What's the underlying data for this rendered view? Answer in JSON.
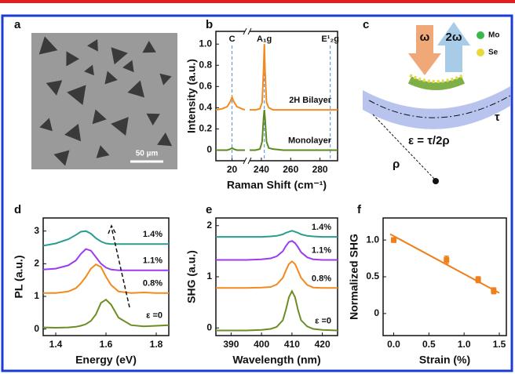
{
  "panel_labels": [
    "a",
    "b",
    "c",
    "d",
    "e",
    "f"
  ],
  "panel_a": {
    "scale_bar": "50 µm"
  },
  "panel_c": {
    "pump": "ω",
    "shg": "2ω",
    "legend": [
      "Mo",
      "Se"
    ],
    "equation": "ε = τ/2ρ",
    "rho": "ρ",
    "tau": "τ"
  },
  "chart_data": [
    {
      "type": "line",
      "ylabel": "Intensity (a.u.)",
      "xlabel": "Raman Shift (cm⁻¹)",
      "x": [
        15,
        17,
        18.5,
        19.5,
        20,
        20.5,
        21.5,
        23,
        24,
        232,
        236,
        239,
        240.5,
        241.5,
        242,
        242.5,
        243.5,
        245,
        248,
        255,
        270,
        285,
        292
      ],
      "xlim": [
        15,
        292
      ],
      "xbreak": [
        24,
        232
      ],
      "xticks": [
        20,
        240,
        260,
        280
      ],
      "ylim": [
        -0.1,
        1.12
      ],
      "yticks": [
        0,
        0.2,
        0.4,
        0.6,
        0.8,
        {
          "value": 1,
          "label": "1.0"
        }
      ],
      "ref_lines": [
        {
          "label": "C",
          "x": 20
        },
        {
          "label": "A₁g",
          "x": 242
        },
        {
          "label": "E¹₂g",
          "x": 287
        }
      ],
      "series": [
        {
          "name": "2H Bilayer",
          "color": "#f28a1e",
          "values": [
            0.38,
            0.39,
            0.41,
            0.46,
            0.5,
            0.46,
            0.41,
            0.39,
            0.38,
            0.38,
            0.38,
            0.39,
            0.45,
            0.75,
            1.0,
            0.75,
            0.45,
            0.4,
            0.38,
            0.38,
            0.38,
            0.38,
            0.38
          ]
        },
        {
          "name": "Monolayer",
          "color": "#5c8a1e",
          "values": [
            0,
            0,
            0,
            0.01,
            0.02,
            0.01,
            0,
            0,
            0,
            0,
            0,
            0.01,
            0.08,
            0.3,
            0.38,
            0.3,
            0.08,
            0.02,
            0.01,
            0,
            0,
            0,
            0
          ]
        }
      ]
    },
    {
      "type": "line",
      "ylabel": "PL (a.u.)",
      "xlabel": "Energy (eV)",
      "x": [
        1.35,
        1.4,
        1.45,
        1.48,
        1.5,
        1.52,
        1.54,
        1.56,
        1.58,
        1.6,
        1.62,
        1.65,
        1.7,
        1.75,
        1.8,
        1.85
      ],
      "xlim": [
        1.35,
        1.85
      ],
      "xticks": [
        1.4,
        1.6,
        1.8
      ],
      "ylim": [
        -0.2,
        3.4
      ],
      "yticks": [
        0,
        1,
        2,
        3
      ],
      "series": [
        {
          "name": "ε =0",
          "color": "#6b8e23",
          "values": [
            0.05,
            0.04,
            0.05,
            0.07,
            0.1,
            0.15,
            0.25,
            0.45,
            0.8,
            0.9,
            0.75,
            0.35,
            0.12,
            0.08,
            0.1,
            0.12
          ]
        },
        {
          "name": "0.8%",
          "color": "#f28a1e",
          "values": [
            1.1,
            1.1,
            1.15,
            1.25,
            1.4,
            1.6,
            1.85,
            1.98,
            1.9,
            1.6,
            1.35,
            1.15,
            1.1,
            1.12,
            1.1,
            1.1
          ]
        },
        {
          "name": "1.1%",
          "color": "#9b3cf0",
          "values": [
            1.82,
            1.85,
            1.95,
            2.1,
            2.3,
            2.45,
            2.4,
            2.2,
            2.0,
            1.88,
            1.82,
            1.8,
            1.8,
            1.8,
            1.8,
            1.8
          ]
        },
        {
          "name": "1.4%",
          "color": "#2a9d8f",
          "values": [
            2.55,
            2.62,
            2.75,
            2.88,
            2.98,
            3.0,
            2.92,
            2.78,
            2.68,
            2.62,
            2.6,
            2.6,
            2.6,
            2.6,
            2.6,
            2.6
          ]
        }
      ]
    },
    {
      "type": "line",
      "ylabel": "SHG (a.u.)",
      "xlabel": "Wavelength (nm)",
      "x": [
        385,
        390,
        395,
        400,
        403,
        405,
        407,
        408,
        409,
        410,
        411,
        412,
        413,
        415,
        417,
        420,
        425
      ],
      "xlim": [
        385,
        425
      ],
      "xticks": [
        390,
        400,
        410,
        420
      ],
      "ylim": [
        -0.15,
        2.15
      ],
      "yticks": [
        0,
        1,
        2
      ],
      "series": [
        {
          "name": "ε =0",
          "color": "#6b8e23",
          "values": [
            -0.05,
            -0.05,
            -0.05,
            -0.04,
            -0.02,
            0.02,
            0.15,
            0.35,
            0.6,
            0.72,
            0.6,
            0.35,
            0.15,
            0.03,
            -0.02,
            -0.04,
            -0.05
          ]
        },
        {
          "name": "0.8%",
          "color": "#f28a1e",
          "values": [
            0.78,
            0.78,
            0.78,
            0.79,
            0.8,
            0.85,
            0.98,
            1.12,
            1.25,
            1.3,
            1.25,
            1.12,
            0.98,
            0.84,
            0.79,
            0.78,
            0.78
          ]
        },
        {
          "name": "1.1%",
          "color": "#9b3cf0",
          "values": [
            1.33,
            1.33,
            1.33,
            1.34,
            1.36,
            1.4,
            1.5,
            1.6,
            1.68,
            1.7,
            1.66,
            1.58,
            1.48,
            1.38,
            1.34,
            1.33,
            1.33
          ]
        },
        {
          "name": "1.4%",
          "color": "#2a9d8f",
          "values": [
            1.78,
            1.78,
            1.78,
            1.78,
            1.79,
            1.8,
            1.83,
            1.86,
            1.88,
            1.9,
            1.88,
            1.86,
            1.83,
            1.8,
            1.79,
            1.78,
            1.78
          ]
        }
      ]
    },
    {
      "type": "scatter",
      "ylabel": "Normalized SHG",
      "xlabel": "Strain (%)",
      "color": "#f07f1a",
      "xlim": [
        -0.15,
        1.6
      ],
      "xticks": [
        {
          "value": 0,
          "label": "0.0"
        },
        {
          "value": 0.5,
          "label": "0.5"
        },
        {
          "value": 1,
          "label": "1.0"
        },
        {
          "value": 1.5,
          "label": "1.5"
        }
      ],
      "ylim": [
        -0.3,
        1.3
      ],
      "yticks": [
        0,
        0.5,
        {
          "value": 1,
          "label": "1.0"
        }
      ],
      "points": {
        "x": [
          0,
          0.75,
          1.2,
          1.42
        ],
        "values": [
          1.0,
          0.73,
          0.46,
          0.31
        ],
        "errors": [
          0.03,
          0.05,
          0.04,
          0.04
        ]
      },
      "fit": {
        "x": [
          -0.05,
          1.5
        ],
        "values": [
          1.08,
          0.28
        ]
      }
    }
  ]
}
